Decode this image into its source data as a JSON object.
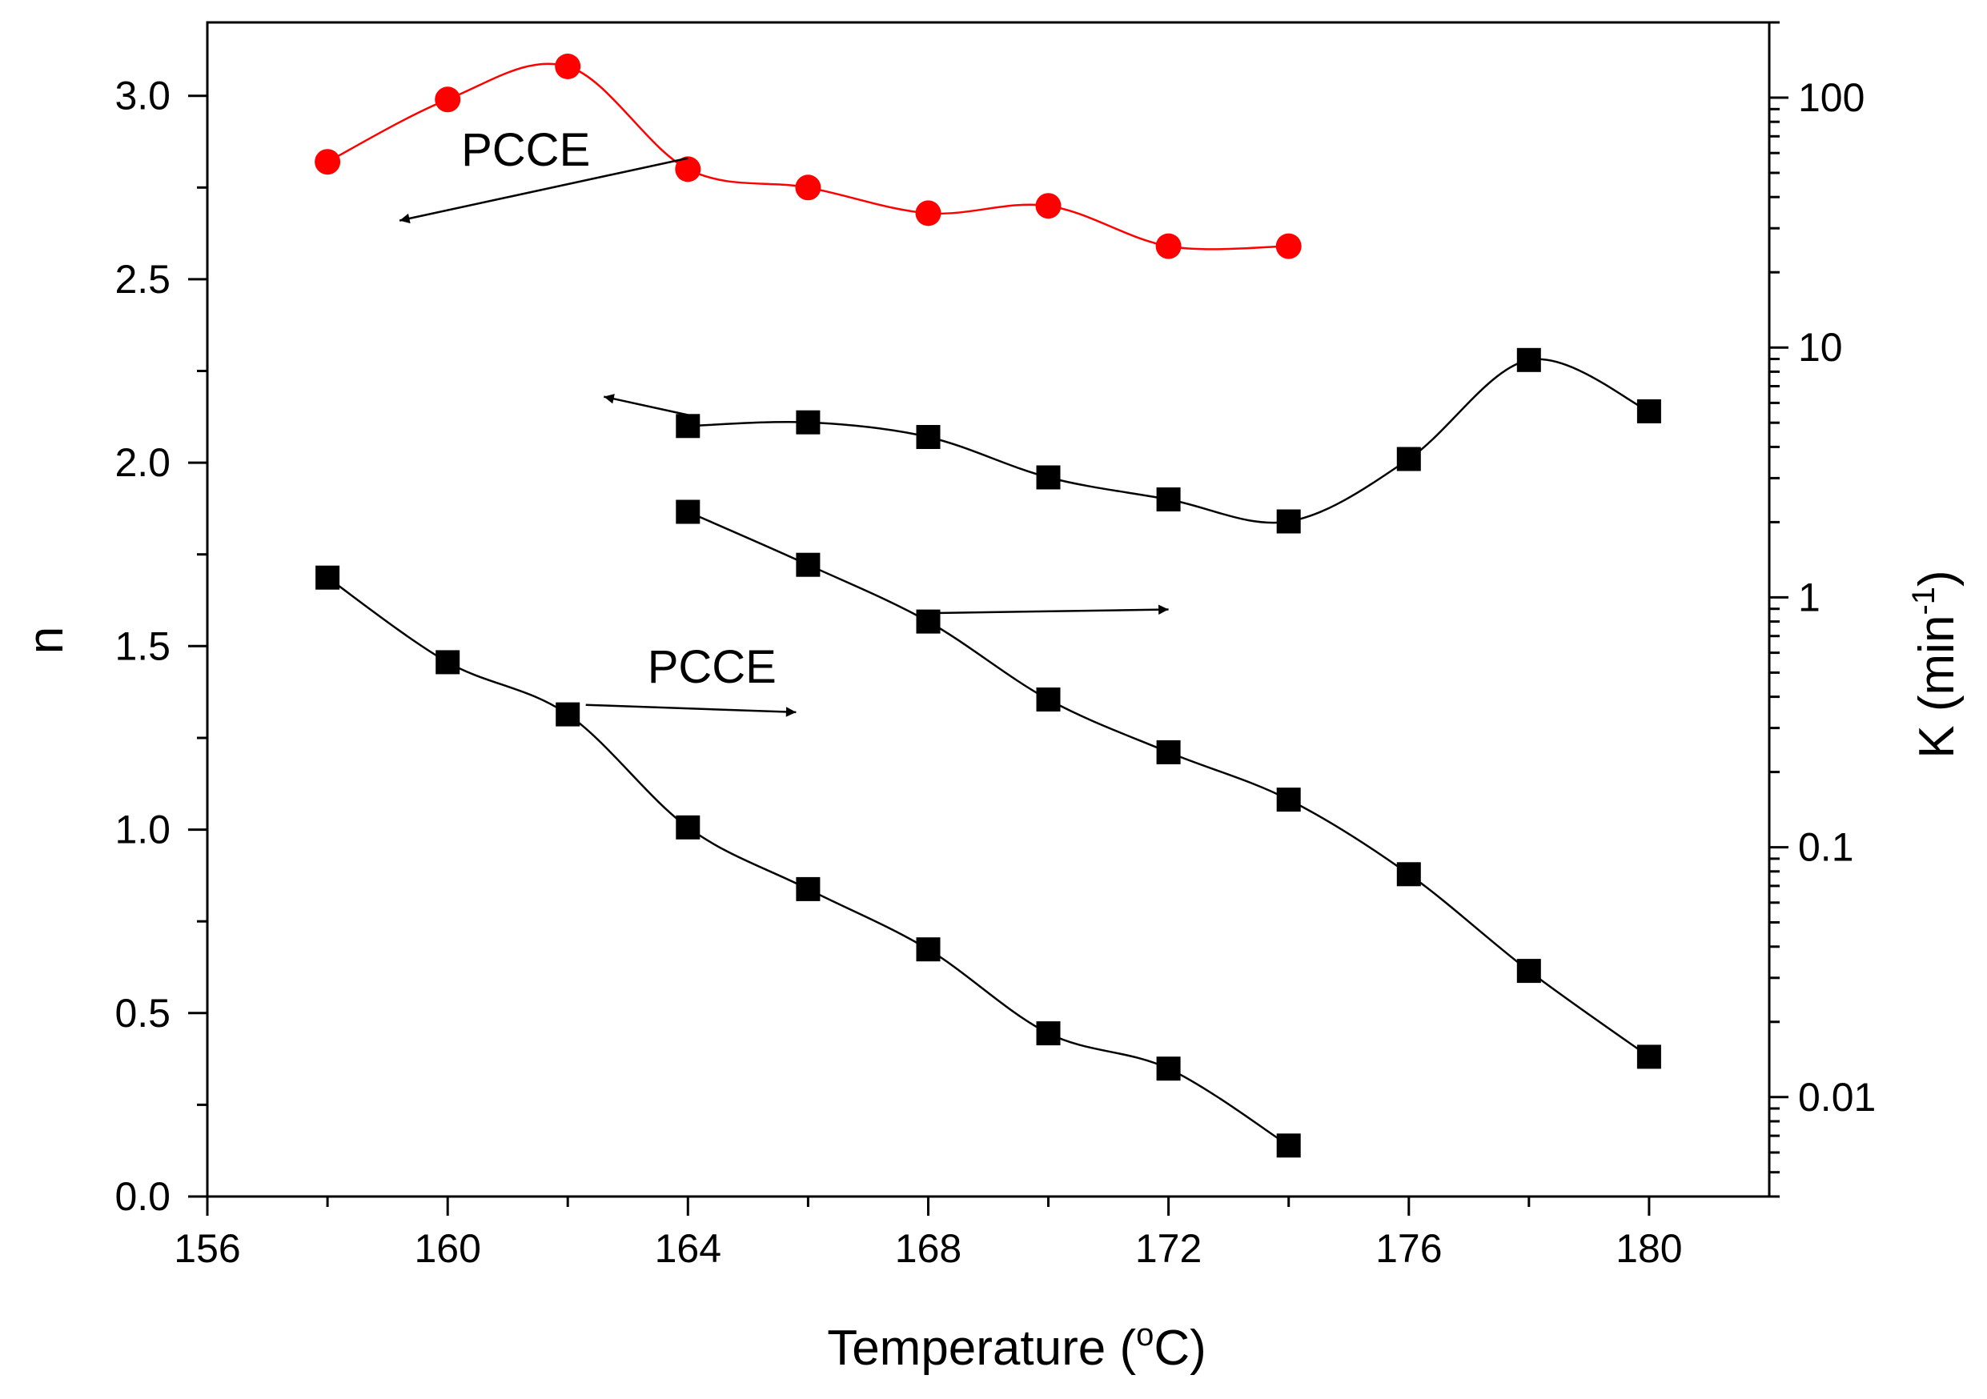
{
  "chart_data": {
    "type": "scatter",
    "x_axis": {
      "label": "Temperature (",
      "label_sup": "o",
      "label_end": "C)",
      "range": [
        156,
        182
      ],
      "ticks": [
        156,
        160,
        164,
        168,
        172,
        176,
        180
      ],
      "tick_labels": [
        "156",
        "160",
        "164",
        "168",
        "172",
        "176",
        "180"
      ]
    },
    "y_left": {
      "label": "n",
      "range": [
        0.0,
        3.2
      ],
      "ticks": [
        0.0,
        0.5,
        1.0,
        1.5,
        2.0,
        2.5,
        3.0
      ],
      "tick_labels": [
        "0.0",
        "0.5",
        "1.0",
        "1.5",
        "2.0",
        "2.5",
        "3.0"
      ]
    },
    "y_right": {
      "label": "K (min",
      "label_sup": "-1",
      "label_end": ")",
      "scale": "log",
      "range": [
        0.004,
        200
      ],
      "ticks": [
        0.01,
        0.1,
        1,
        10,
        100
      ],
      "tick_labels": [
        "0.01",
        "0.1",
        "1",
        "10",
        "100"
      ]
    },
    "series": [
      {
        "name": "n (PCCE)",
        "axis": "left",
        "marker": "circle",
        "color": "#ff0000",
        "x": [
          158,
          160,
          162,
          164,
          166,
          168,
          170,
          172,
          174
        ],
        "y": [
          2.82,
          2.99,
          3.08,
          2.8,
          2.75,
          2.68,
          2.7,
          2.59,
          2.59
        ]
      },
      {
        "name": "n",
        "axis": "left",
        "marker": "square",
        "color": "#000000",
        "x": [
          164,
          166,
          168,
          170,
          172,
          174,
          176,
          178,
          180
        ],
        "y": [
          2.1,
          2.11,
          2.07,
          1.96,
          1.9,
          1.84,
          2.01,
          2.28,
          2.14
        ]
      },
      {
        "name": "K (PCCE)",
        "axis": "right",
        "marker": "square",
        "color": "#000000",
        "x": [
          158,
          160,
          162,
          164,
          166,
          168,
          170,
          172,
          174
        ],
        "y": [
          1.2,
          0.55,
          0.34,
          0.12,
          0.068,
          0.039,
          0.018,
          0.013,
          0.0064
        ]
      },
      {
        "name": "K",
        "axis": "right",
        "marker": "square",
        "color": "#000000",
        "x": [
          164,
          166,
          168,
          170,
          172,
          174,
          176,
          178,
          180
        ],
        "y": [
          2.2,
          1.35,
          0.8,
          0.39,
          0.24,
          0.155,
          0.078,
          0.032,
          0.0145
        ]
      }
    ],
    "annotations": [
      {
        "text": "PCCE",
        "x": 161.3,
        "y": 2.81
      },
      {
        "text": "PCCE",
        "x": 164.4,
        "y": 1.4
      }
    ],
    "arrows": [
      {
        "from": [
          164,
          2.83
        ],
        "to": [
          159.2,
          2.66
        ]
      },
      {
        "from": [
          164,
          2.13
        ],
        "to": [
          162.6,
          2.18
        ]
      },
      {
        "from": [
          168,
          1.59
        ],
        "to": [
          172,
          1.6
        ]
      },
      {
        "from": [
          162.3,
          1.34
        ],
        "to": [
          165.8,
          1.32
        ]
      }
    ]
  }
}
